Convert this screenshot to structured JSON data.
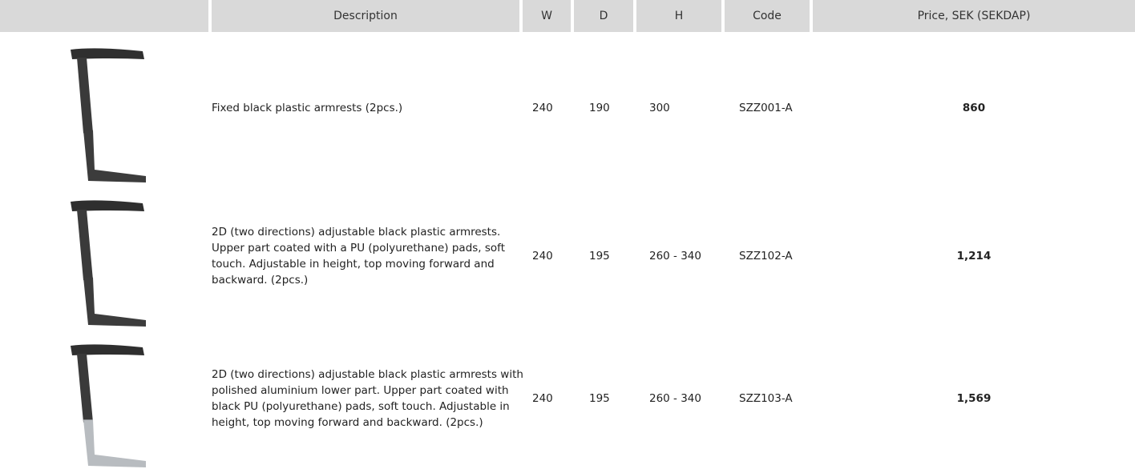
{
  "table": {
    "header": [
      "Description",
      "W",
      "D",
      "H",
      "Code",
      "Price, SEK (SEKDAP)"
    ],
    "rows": [
      [
        "Fixed black plastic armrests (2pcs.)",
        "240",
        "190",
        "300",
        "SZZ001-A",
        "860"
      ],
      [
        "2D (two directions) adjustable black plastic armrests. Upper part coated with a PU (polyurethane) pads, soft touch. Adjustable in height, top moving forward and backward. (2pcs.)",
        "240",
        "195",
        "260 - 340",
        "SZZ102-A",
        "1,214"
      ],
      [
        "2D (two directions) adjustable black plastic armrests with polished aluminium lower part. Upper part coated with black PU (polyurethane) pads, soft touch. Adjustable in height, top moving forward and backward. (2pcs.)",
        "240",
        "195",
        "260 - 340",
        "SZZ103-A",
        "1,569"
      ]
    ]
  }
}
